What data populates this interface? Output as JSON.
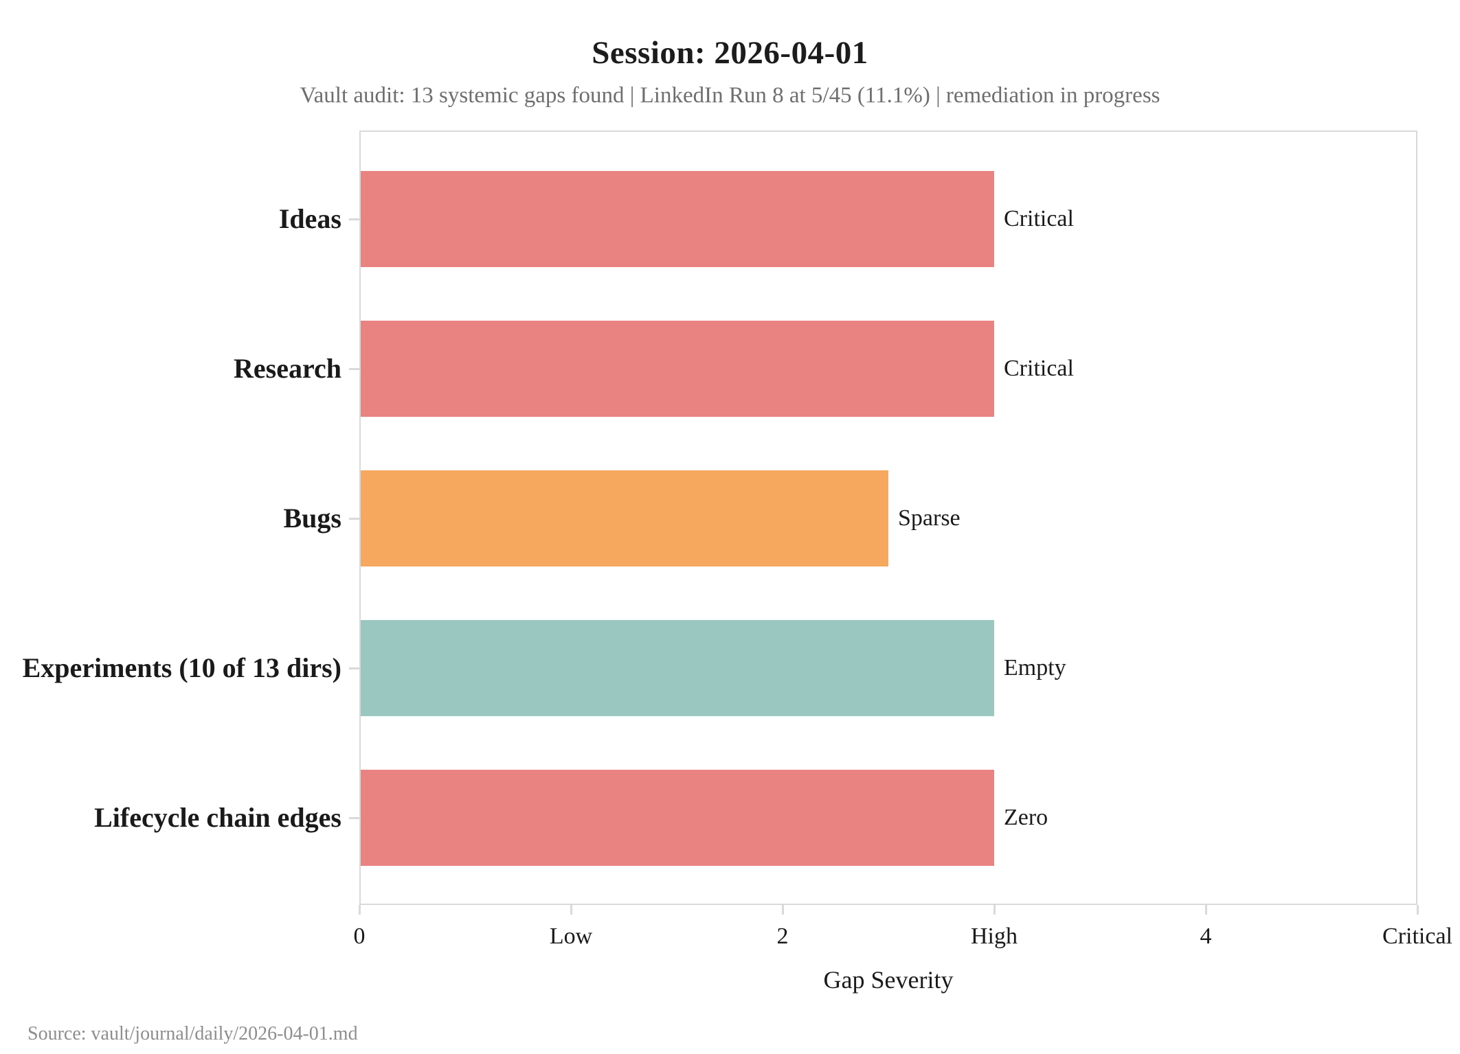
{
  "header": {
    "title": "Session: 2026-04-01",
    "subtitle": "Vault audit: 13 systemic gaps found | LinkedIn Run 8 at 5/45 (11.1%) | remediation in progress"
  },
  "chart_data": {
    "type": "bar",
    "orientation": "horizontal",
    "title": "Session: 2026-04-01",
    "subtitle": "Vault audit: 13 systemic gaps found | LinkedIn Run 8 at 5/45 (11.1%) | remediation in progress",
    "categories": [
      "Ideas",
      "Research",
      "Bugs",
      "Experiments (10 of 13 dirs)",
      "Lifecycle chain edges"
    ],
    "values": [
      3,
      3,
      2.5,
      3,
      3
    ],
    "bar_labels": [
      "Critical",
      "Critical",
      "Sparse",
      "Empty",
      "Zero"
    ],
    "bar_colors": [
      "#e88382",
      "#e88382",
      "#f5a85e",
      "#9ac8c0",
      "#e88382"
    ],
    "xlabel": "Gap Severity",
    "ylabel": "",
    "xlim": [
      0,
      5
    ],
    "x_ticks": [
      {
        "value": 0,
        "label": "0"
      },
      {
        "value": 1,
        "label": "Low"
      },
      {
        "value": 2,
        "label": "2"
      },
      {
        "value": 3,
        "label": "High"
      },
      {
        "value": 4,
        "label": "4"
      },
      {
        "value": 5,
        "label": "Critical"
      }
    ],
    "grid": false,
    "legend": null,
    "spine_color": "#d9d9d9"
  },
  "footer": {
    "source": "Source: vault/journal/daily/2026-04-01.md"
  }
}
